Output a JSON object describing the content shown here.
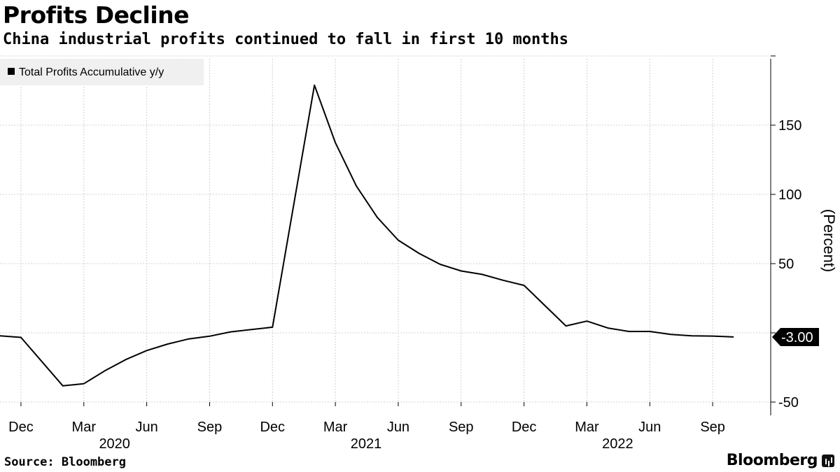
{
  "title": "Profits Decline",
  "subtitle": "China industrial profits continued to fall in first 10 months",
  "source": "Source: Bloomberg",
  "brand": "Bloomberg",
  "colors": {
    "line": "#000000",
    "grid": "#d0d0d0",
    "legend_bg": "#f0f0f0",
    "label_bg": "#000000",
    "label_text": "#ffffff"
  },
  "chart_data": {
    "type": "line",
    "title": "Profits Decline",
    "subtitle": "China industrial profits continued to fall in first 10 months",
    "ylabel": "(Percent)",
    "ylim": [
      -50,
      200
    ],
    "yticks": [
      -50,
      50,
      100,
      150
    ],
    "grid": true,
    "legend_position": "top-left",
    "y_axis_side": "right",
    "x_tick_labels": [
      "Dec",
      "Mar",
      "Jun",
      "Sep",
      "Dec",
      "Mar",
      "Jun",
      "Sep",
      "Dec",
      "Mar",
      "Jun",
      "Sep"
    ],
    "x_tick_dates": [
      "2019-12",
      "2020-03",
      "2020-06",
      "2020-09",
      "2020-12",
      "2021-03",
      "2021-06",
      "2021-09",
      "2021-12",
      "2022-03",
      "2022-06",
      "2022-09"
    ],
    "x_year_labels": [
      "2020",
      "2021",
      "2022"
    ],
    "x_year_dates": [
      "2020-04-15",
      "2021-04-15",
      "2022-04-15"
    ],
    "x_range": [
      "2019-11",
      "2022-11"
    ],
    "last_value_label": "-3.00",
    "series": [
      {
        "name": "Total Profits Accumulative y/y",
        "points": [
          {
            "x": "2019-11",
            "y": -2.1
          },
          {
            "x": "2019-12",
            "y": -3.3
          },
          {
            "x": "2020-02",
            "y": -38.3
          },
          {
            "x": "2020-03",
            "y": -36.7
          },
          {
            "x": "2020-04",
            "y": -27.4
          },
          {
            "x": "2020-05",
            "y": -19.3
          },
          {
            "x": "2020-06",
            "y": -12.8
          },
          {
            "x": "2020-07",
            "y": -8.1
          },
          {
            "x": "2020-08",
            "y": -4.4
          },
          {
            "x": "2020-09",
            "y": -2.4
          },
          {
            "x": "2020-10",
            "y": 0.7
          },
          {
            "x": "2020-11",
            "y": 2.4
          },
          {
            "x": "2020-12",
            "y": 4.1
          },
          {
            "x": "2021-02",
            "y": 178.9
          },
          {
            "x": "2021-03",
            "y": 137.3
          },
          {
            "x": "2021-04",
            "y": 106.0
          },
          {
            "x": "2021-05",
            "y": 83.4
          },
          {
            "x": "2021-06",
            "y": 66.9
          },
          {
            "x": "2021-07",
            "y": 57.3
          },
          {
            "x": "2021-08",
            "y": 49.5
          },
          {
            "x": "2021-09",
            "y": 44.7
          },
          {
            "x": "2021-10",
            "y": 42.2
          },
          {
            "x": "2021-11",
            "y": 38.0
          },
          {
            "x": "2021-12",
            "y": 34.3
          },
          {
            "x": "2022-02",
            "y": 5.0
          },
          {
            "x": "2022-03",
            "y": 8.5
          },
          {
            "x": "2022-04",
            "y": 3.5
          },
          {
            "x": "2022-05",
            "y": 1.0
          },
          {
            "x": "2022-06",
            "y": 1.0
          },
          {
            "x": "2022-07",
            "y": -1.1
          },
          {
            "x": "2022-08",
            "y": -2.1
          },
          {
            "x": "2022-09",
            "y": -2.3
          },
          {
            "x": "2022-10",
            "y": -3.0
          }
        ]
      }
    ]
  }
}
